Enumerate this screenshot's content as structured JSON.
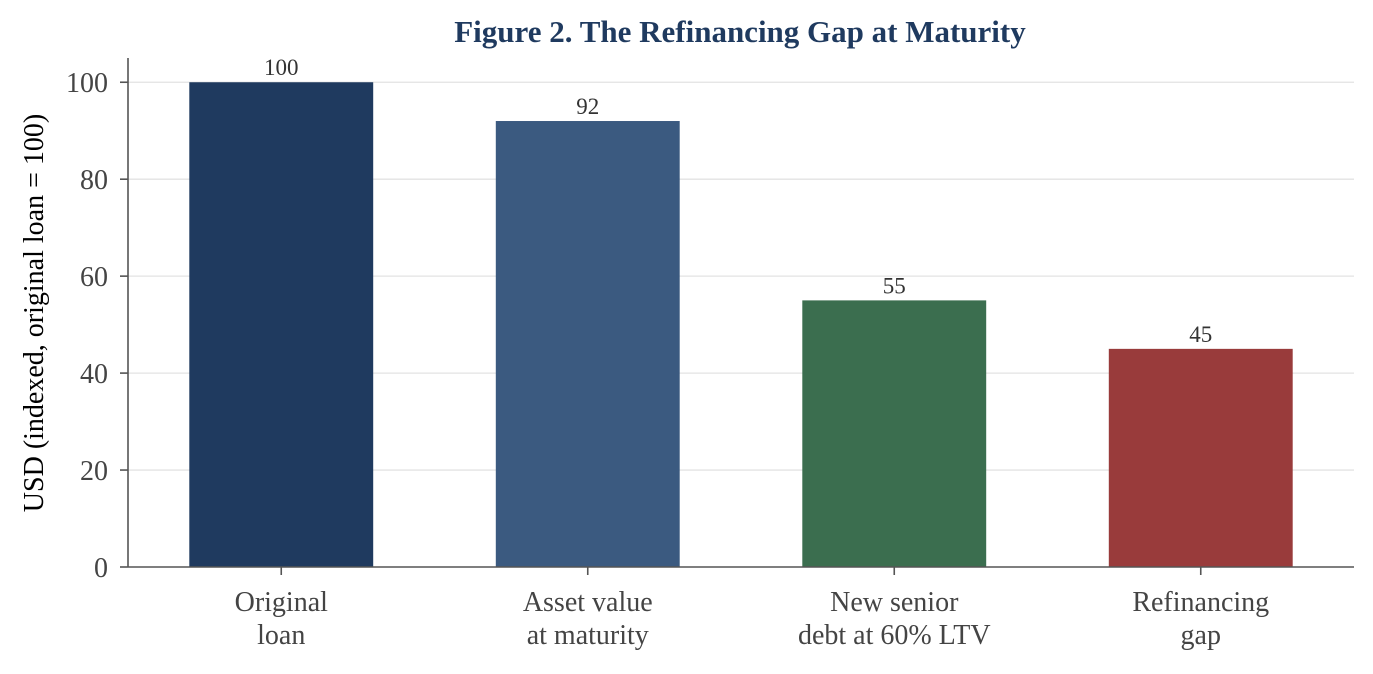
{
  "chart_data": {
    "type": "bar",
    "title": "Figure 2. The Refinancing Gap at Maturity",
    "xlabel": "",
    "ylabel": "USD (indexed, original loan = 100)",
    "ylim": [
      0,
      105
    ],
    "yticks": [
      "0",
      "20",
      "40",
      "60",
      "80",
      "100"
    ],
    "grid": true,
    "categories": [
      [
        "Original",
        "loan"
      ],
      [
        "Asset value",
        "at maturity"
      ],
      [
        "New senior",
        "debt at 60% LTV"
      ],
      [
        "Refinancing",
        "gap"
      ]
    ],
    "values": [
      100,
      92,
      55,
      45
    ],
    "data_labels": [
      "100",
      "92",
      "55",
      "45"
    ],
    "colors": [
      "#1f3a5f",
      "#3b5a80",
      "#3b6e4f",
      "#993b3b"
    ]
  }
}
